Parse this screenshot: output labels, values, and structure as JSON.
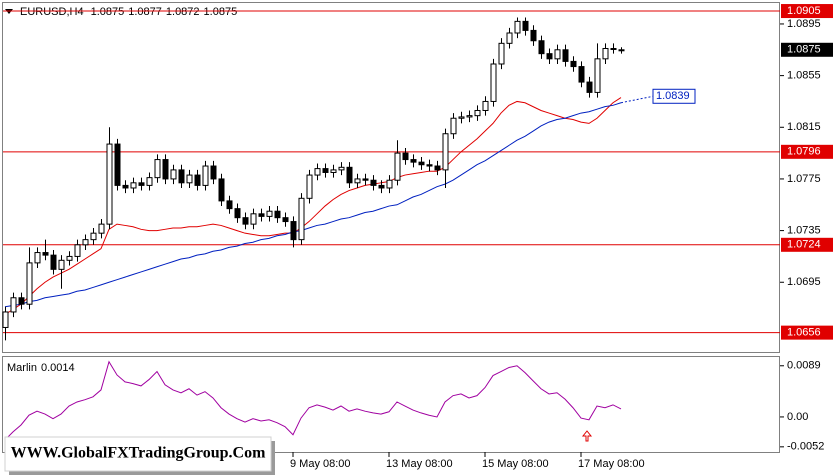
{
  "chart_data": [
    {
      "type": "candlestick",
      "title": "EURUSD,H4",
      "open": [
        1.066,
        1.0672,
        1.0683,
        1.0678,
        1.071,
        1.0718,
        1.0716,
        1.0705,
        1.0712,
        1.0715,
        1.0724,
        1.0728,
        1.0733,
        1.074,
        1.0802,
        1.077,
        1.0768,
        1.0772,
        1.077,
        1.0776,
        1.079,
        1.0775,
        1.0782,
        1.0772,
        1.0778,
        1.077,
        1.0785,
        1.0775,
        1.0758,
        1.0752,
        1.0745,
        1.074,
        1.0748,
        1.0746,
        1.075,
        1.0745,
        1.0742,
        1.0728,
        1.076,
        1.0778,
        1.0783,
        1.078,
        1.0782,
        1.0784,
        1.0772,
        1.0775,
        1.0774,
        1.077,
        1.0768,
        1.0774,
        1.0795,
        1.079,
        1.0788,
        1.0786,
        1.0785,
        1.0782,
        1.081,
        1.0822,
        1.0823,
        1.0824,
        1.0828,
        1.0835,
        1.0864,
        1.088,
        1.0888,
        1.0897,
        1.089,
        1.0882,
        1.0872,
        1.0868,
        1.0875,
        1.0866,
        1.0862,
        1.085,
        1.0842,
        1.0868,
        1.0876,
        1.0875
      ],
      "high": [
        1.0676,
        1.0687,
        1.0687,
        1.0722,
        1.0722,
        1.0728,
        1.072,
        1.0716,
        1.0719,
        1.0728,
        1.0732,
        1.0737,
        1.0744,
        1.0815,
        1.0806,
        1.0774,
        1.0776,
        1.0776,
        1.078,
        1.0794,
        1.0794,
        1.0786,
        1.0786,
        1.0782,
        1.0782,
        1.0789,
        1.0789,
        1.0779,
        1.0762,
        1.0756,
        1.0749,
        1.0752,
        1.0752,
        1.0754,
        1.0754,
        1.0749,
        1.0746,
        1.0764,
        1.0782,
        1.0787,
        1.0787,
        1.0786,
        1.0788,
        1.0788,
        1.0779,
        1.0779,
        1.0778,
        1.0774,
        1.0778,
        1.0805,
        1.0799,
        1.0794,
        1.0792,
        1.079,
        1.0789,
        1.0814,
        1.0826,
        1.0827,
        1.0828,
        1.0832,
        1.0839,
        1.0868,
        1.0884,
        1.0892,
        1.09,
        1.09,
        1.0894,
        1.0886,
        1.0876,
        1.0879,
        1.0879,
        1.087,
        1.0866,
        1.0854,
        1.088,
        1.088,
        1.088,
        1.0877
      ],
      "low": [
        1.065,
        1.0668,
        1.0674,
        1.0674,
        1.0706,
        1.0712,
        1.0701,
        1.069,
        1.0708,
        1.0711,
        1.072,
        1.0724,
        1.0729,
        1.0736,
        1.0766,
        1.0764,
        1.0764,
        1.0766,
        1.0766,
        1.0772,
        1.0771,
        1.0771,
        1.0768,
        1.0768,
        1.0766,
        1.0766,
        1.0771,
        1.0754,
        1.0748,
        1.0741,
        1.0736,
        1.0736,
        1.0742,
        1.0742,
        1.0741,
        1.0738,
        1.0722,
        1.0724,
        1.0756,
        1.0774,
        1.0776,
        1.0776,
        1.0778,
        1.0768,
        1.0768,
        1.077,
        1.0766,
        1.0764,
        1.0764,
        1.077,
        1.0786,
        1.0784,
        1.0782,
        1.0781,
        1.0778,
        1.0768,
        1.0806,
        1.0818,
        1.0819,
        1.082,
        1.0824,
        1.0831,
        1.086,
        1.0876,
        1.0884,
        1.0886,
        1.0878,
        1.0868,
        1.0864,
        1.0864,
        1.0862,
        1.0858,
        1.0846,
        1.0838,
        1.0838,
        1.0864,
        1.0872,
        1.0872
      ],
      "close": [
        1.0672,
        1.0683,
        1.0678,
        1.071,
        1.0718,
        1.0716,
        1.0705,
        1.0712,
        1.0715,
        1.0724,
        1.0728,
        1.0733,
        1.074,
        1.0802,
        1.077,
        1.0768,
        1.0772,
        1.077,
        1.0776,
        1.079,
        1.0775,
        1.0782,
        1.0772,
        1.0778,
        1.077,
        1.0785,
        1.0775,
        1.0758,
        1.0752,
        1.0745,
        1.074,
        1.0748,
        1.0746,
        1.075,
        1.0745,
        1.0742,
        1.0728,
        1.076,
        1.0778,
        1.0783,
        1.078,
        1.0782,
        1.0784,
        1.0772,
        1.0775,
        1.0774,
        1.077,
        1.0768,
        1.0774,
        1.0795,
        1.079,
        1.0788,
        1.0786,
        1.0785,
        1.0782,
        1.081,
        1.0822,
        1.0823,
        1.0824,
        1.0828,
        1.0835,
        1.0864,
        1.088,
        1.0888,
        1.0897,
        1.089,
        1.0882,
        1.0872,
        1.0868,
        1.0875,
        1.0866,
        1.0862,
        1.085,
        1.0842,
        1.0868,
        1.0876,
        1.0876,
        1.0875
      ],
      "categories": [
        null,
        null,
        null,
        null,
        null,
        null,
        null,
        null,
        null,
        null,
        null,
        null,
        null,
        null,
        null,
        null,
        null,
        null,
        null,
        null,
        null,
        null,
        null,
        null,
        null,
        null,
        null,
        null,
        null,
        null,
        null,
        null,
        null,
        null,
        null,
        null,
        "9 May 08:00",
        null,
        null,
        null,
        null,
        null,
        null,
        null,
        null,
        null,
        null,
        null,
        "13 May 08:00",
        null,
        null,
        null,
        null,
        null,
        null,
        null,
        null,
        null,
        null,
        null,
        "15 May 08:00",
        null,
        null,
        null,
        null,
        null,
        null,
        null,
        null,
        null,
        null,
        null,
        "17 May 08:00",
        null,
        null,
        null,
        null,
        null
      ],
      "lines": [
        {
          "color": "#e00000",
          "values": [
            1.067,
            1.0674,
            1.0678,
            1.0684,
            1.069,
            1.0695,
            1.0699,
            1.0702,
            1.0705,
            1.0709,
            1.0713,
            1.0717,
            1.0721,
            1.0736,
            1.074,
            1.0739,
            1.0738,
            1.0736,
            1.0735,
            1.0735,
            1.0736,
            1.0737,
            1.0737,
            1.0738,
            1.0738,
            1.0739,
            1.074,
            1.0739,
            1.0737,
            1.0735,
            1.0733,
            1.0732,
            1.0731,
            1.0731,
            1.0732,
            1.0733,
            1.0733,
            1.0737,
            1.0742,
            1.0748,
            1.0754,
            1.0759,
            1.0763,
            1.0766,
            1.0768,
            1.077,
            1.0771,
            1.0772,
            1.0773,
            1.0776,
            1.0778,
            1.0779,
            1.078,
            1.0781,
            1.0781,
            1.0784,
            1.079,
            1.0796,
            1.0801,
            1.0806,
            1.0812,
            1.0818,
            1.0826,
            1.0832,
            1.0835,
            1.0834,
            1.0831,
            1.0828,
            1.0826,
            1.0824,
            1.0822,
            1.0821,
            1.0819,
            1.0818,
            1.0822,
            1.0828,
            1.0834,
            1.0838
          ]
        },
        {
          "color": "#0020c0",
          "values": [
            1.0676,
            1.0677,
            1.0678,
            1.068,
            1.0681,
            1.0683,
            1.0684,
            1.0685,
            1.0686,
            1.0688,
            1.0689,
            1.0691,
            1.0693,
            1.0695,
            1.0697,
            1.0699,
            1.0701,
            1.0703,
            1.0705,
            1.0707,
            1.0709,
            1.0711,
            1.0713,
            1.0714,
            1.0716,
            1.0717,
            1.0719,
            1.072,
            1.0722,
            1.0723,
            1.0725,
            1.0726,
            1.0728,
            1.0729,
            1.0731,
            1.0732,
            1.0734,
            1.0735,
            1.0737,
            1.0739,
            1.074,
            1.0742,
            1.0744,
            1.0745,
            1.0747,
            1.0749,
            1.075,
            1.0752,
            1.0754,
            1.0755,
            1.0758,
            1.0761,
            1.0763,
            1.0766,
            1.0769,
            1.0771,
            1.0774,
            1.0778,
            1.0782,
            1.0786,
            1.0789,
            1.0793,
            1.0797,
            1.0801,
            1.0805,
            1.0808,
            1.0812,
            1.0816,
            1.0819,
            1.0821,
            1.0822,
            1.0824,
            1.0826,
            1.0827,
            1.0829,
            1.0831,
            1.0832,
            1.0834
          ]
        }
      ],
      "projection": 1.0839,
      "levels": [
        1.0905,
        1.0796,
        1.0724,
        1.0656
      ],
      "level_color": "#e00000",
      "current_price": 1.0875,
      "ylim": [
        1.0641,
        1.0912
      ],
      "yticks": [
        1.0895,
        1.0855,
        1.0815,
        1.0775,
        1.0735,
        1.0695
      ],
      "grid": false,
      "watermark": "WWW.GlobalFXTradingGroup.Com"
    },
    {
      "type": "line",
      "title": "Marlin",
      "series": [
        {
          "color": "#a000a0",
          "values": [
            -0.004,
            -0.0026,
            -0.0014,
            0.0003,
            0.001,
            0.0005,
            -0.0003,
            0.0005,
            0.0019,
            0.0026,
            0.003,
            0.0035,
            0.0047,
            0.0096,
            0.0073,
            0.0061,
            0.0058,
            0.0054,
            0.0065,
            0.0079,
            0.0056,
            0.0047,
            0.0042,
            0.0049,
            0.0038,
            0.0044,
            0.0033,
            0.0016,
            0.0005,
            -0.0003,
            -0.0009,
            -0.0003,
            -0.0007,
            -0.0005,
            -0.001,
            -0.0017,
            -0.0031,
            -0.0002,
            0.0016,
            0.0021,
            0.0017,
            0.0012,
            0.0019,
            0.001,
            0.0014,
            0.001,
            0.0007,
            0.0005,
            0.0009,
            0.0026,
            0.0019,
            0.0012,
            0.0007,
            0.0003,
            0.0,
            0.0026,
            0.0037,
            0.004,
            0.0033,
            0.0037,
            0.0051,
            0.0072,
            0.0079,
            0.0086,
            0.0089,
            0.0077,
            0.0063,
            0.0049,
            0.004,
            0.0042,
            0.0031,
            0.0016,
            -0.0002,
            -0.0005,
            0.0019,
            0.0016,
            0.0021,
            0.0014
          ]
        }
      ],
      "ylim": [
        -0.0061,
        0.0106
      ],
      "yticks": [
        0.0089,
        {
          "value": 0,
          "label": "0.00"
        },
        -0.0052
      ]
    }
  ]
}
